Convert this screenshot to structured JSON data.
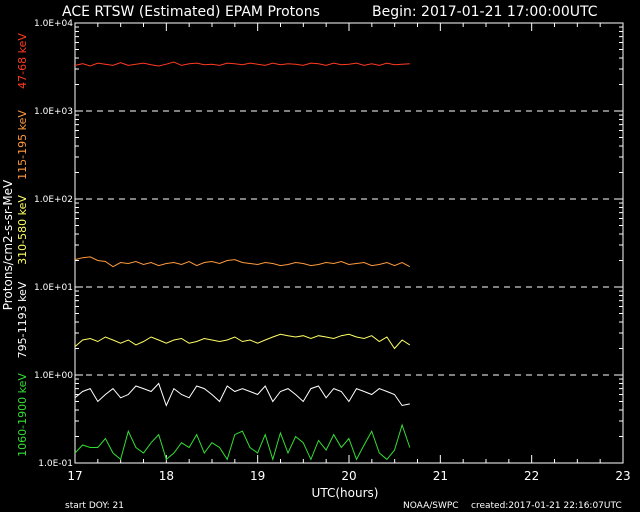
{
  "header": {
    "title": "ACE RTSW (Estimated) EPAM Protons",
    "begin": "Begin: 2017-01-21 17:00:00UTC"
  },
  "footer": {
    "start_doy": "start DOY:   21",
    "source": "NOAA/SWPC",
    "created": "created:2017-01-21 22:16:07UTC"
  },
  "chart_data": {
    "type": "line",
    "title": "ACE RTSW (Estimated) EPAM Protons",
    "xlabel": "UTC(hours)",
    "ylabel": "Protons/cm2-s-sr-MeV",
    "xlim": [
      17,
      23
    ],
    "ylim": [
      0.1,
      10000
    ],
    "yscale": "log",
    "x_ticks": [
      "17",
      "18",
      "19",
      "20",
      "21",
      "22",
      "23"
    ],
    "y_ticks": [
      "1.0E-01",
      "1.0E+00",
      "1.0E+01",
      "1.0E+02",
      "1.0E+03",
      "1.0E+04"
    ],
    "grid": "dashed horizontal lines at each decade",
    "background": "#000000",
    "series": [
      {
        "name": "47-68 keV",
        "color": "#ff3b1f",
        "x_start": 17.0,
        "x_step": 0.0833,
        "values": [
          3300,
          3450,
          3250,
          3500,
          3400,
          3300,
          3550,
          3300,
          3400,
          3500,
          3350,
          3250,
          3400,
          3600,
          3300,
          3450,
          3500,
          3350,
          3400,
          3300,
          3500,
          3450,
          3350,
          3500,
          3400,
          3300,
          3500,
          3350,
          3450,
          3400,
          3300,
          3500,
          3450,
          3300,
          3500,
          3350,
          3400,
          3500,
          3300,
          3450,
          3300,
          3500,
          3350,
          3400,
          3450
        ]
      },
      {
        "name": "115-195 keV",
        "color": "#ff9a3c",
        "x_start": 17.0,
        "x_step": 0.0833,
        "values": [
          20.5,
          21.5,
          22.0,
          20.0,
          19.5,
          17.0,
          19.0,
          18.5,
          19.5,
          18.0,
          19.0,
          17.5,
          18.5,
          19.0,
          18.0,
          19.5,
          17.5,
          19.0,
          19.5,
          18.5,
          20.0,
          20.5,
          19.0,
          18.5,
          18.0,
          19.0,
          18.5,
          17.5,
          18.0,
          19.0,
          18.5,
          17.5,
          18.0,
          19.0,
          18.5,
          19.5,
          18.0,
          18.5,
          19.0,
          17.5,
          18.0,
          19.0,
          17.5,
          19.0,
          17.0
        ]
      },
      {
        "name": "310-580 keV",
        "color": "#ffff66",
        "x_start": 17.0,
        "x_step": 0.0833,
        "values": [
          2.1,
          2.5,
          2.6,
          2.4,
          2.7,
          2.5,
          2.3,
          2.5,
          2.2,
          2.4,
          2.7,
          2.5,
          2.3,
          2.5,
          2.6,
          2.3,
          2.4,
          2.6,
          2.5,
          2.4,
          2.5,
          2.7,
          2.4,
          2.5,
          2.3,
          2.5,
          2.7,
          2.9,
          2.8,
          2.7,
          2.8,
          2.6,
          2.8,
          2.7,
          2.6,
          2.8,
          2.9,
          2.7,
          2.6,
          2.8,
          2.4,
          2.7,
          2.0,
          2.5,
          2.2
        ]
      },
      {
        "name": "795-1193 keV",
        "color": "#ffffff",
        "x_start": 17.0,
        "x_step": 0.0833,
        "values": [
          0.55,
          0.65,
          0.7,
          0.5,
          0.6,
          0.7,
          0.55,
          0.6,
          0.75,
          0.7,
          0.65,
          0.8,
          0.45,
          0.7,
          0.6,
          0.55,
          0.75,
          0.7,
          0.6,
          0.5,
          0.75,
          0.65,
          0.7,
          0.65,
          0.6,
          0.75,
          0.5,
          0.65,
          0.7,
          0.6,
          0.5,
          0.7,
          0.75,
          0.55,
          0.7,
          0.65,
          0.5,
          0.7,
          0.65,
          0.6,
          0.7,
          0.65,
          0.6,
          0.45,
          0.47
        ]
      },
      {
        "name": "1060-1900 keV",
        "color": "#33dd33",
        "x_start": 17.0,
        "x_step": 0.0833,
        "values": [
          0.13,
          0.16,
          0.15,
          0.15,
          0.19,
          0.13,
          0.11,
          0.23,
          0.15,
          0.13,
          0.17,
          0.21,
          0.11,
          0.13,
          0.17,
          0.15,
          0.21,
          0.13,
          0.17,
          0.15,
          0.11,
          0.21,
          0.23,
          0.15,
          0.13,
          0.21,
          0.11,
          0.22,
          0.13,
          0.2,
          0.17,
          0.11,
          0.18,
          0.14,
          0.21,
          0.15,
          0.19,
          0.11,
          0.16,
          0.23,
          0.13,
          0.11,
          0.14,
          0.27,
          0.15
        ]
      }
    ]
  }
}
